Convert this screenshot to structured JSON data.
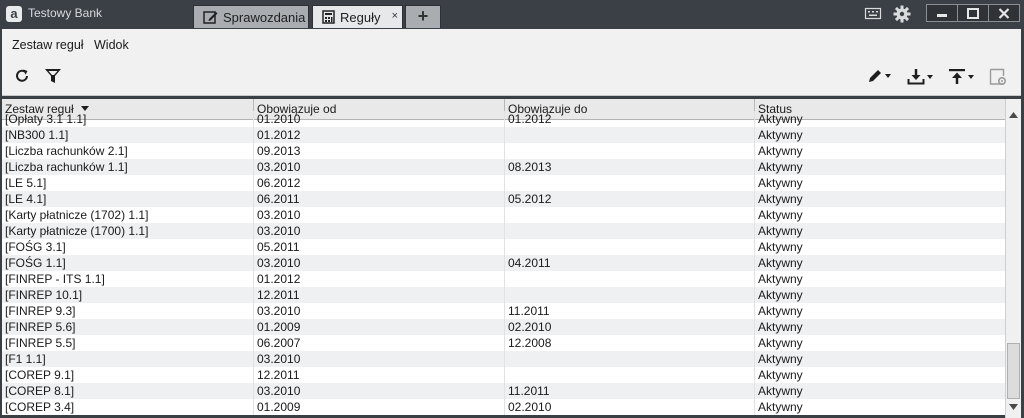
{
  "window": {
    "app_title": "Testowy Bank",
    "logo_letter": "a",
    "tabs": [
      {
        "label": "Sprawozdania",
        "icon": "edit-icon",
        "active": false
      },
      {
        "label": "Reguły",
        "icon": "calculator-icon",
        "active": true,
        "close": "×"
      },
      {
        "label": "+",
        "icon": "add-tab-icon",
        "active": false
      }
    ],
    "controls": [
      "keyboard-icon",
      "gear-icon",
      "minimize-icon",
      "maximize-icon",
      "close-icon"
    ]
  },
  "menu": {
    "items": [
      {
        "label": "Zestaw reguł"
      },
      {
        "label": "Widok"
      }
    ]
  },
  "toolbar": {
    "left": [
      "refresh-icon",
      "filter-icon"
    ],
    "right": [
      "edit-pencil-icon",
      "download-icon",
      "upload-icon",
      "settings-panel-icon"
    ]
  },
  "grid": {
    "columns": [
      "Zestaw reguł",
      "Obowiązuje od",
      "Obowiązuje do",
      "Status"
    ],
    "sorted_column": "Zestaw reguł",
    "rows": [
      [
        "[Opłaty 3.1 1.1]",
        "01.2010",
        "01.2012",
        "Aktywny"
      ],
      [
        "[NB300 1.1]",
        "01.2012",
        "",
        "Aktywny"
      ],
      [
        "[Liczba rachunków 2.1]",
        "09.2013",
        "",
        "Aktywny"
      ],
      [
        "[Liczba rachunków 1.1]",
        "03.2010",
        "08.2013",
        "Aktywny"
      ],
      [
        "[LE  5.1]",
        "06.2012",
        "",
        "Aktywny"
      ],
      [
        "[LE  4.1]",
        "06.2011",
        "05.2012",
        "Aktywny"
      ],
      [
        "[Karty płatnicze (1702) 1.1]",
        "03.2010",
        "",
        "Aktywny"
      ],
      [
        "[Karty płatnicze (1700) 1.1]",
        "03.2010",
        "",
        "Aktywny"
      ],
      [
        "[FOŚG 3.1]",
        "05.2011",
        "",
        "Aktywny"
      ],
      [
        "[FOŚG 1.1]",
        "03.2010",
        "04.2011",
        "Aktywny"
      ],
      [
        "[FINREP - ITS 1.1]",
        "01.2012",
        "",
        "Aktywny"
      ],
      [
        "[FINREP 10.1]",
        "12.2011",
        "",
        "Aktywny"
      ],
      [
        "[FINREP 9.3]",
        "03.2010",
        "11.2011",
        "Aktywny"
      ],
      [
        "[FINREP 5.6]",
        "01.2009",
        "02.2010",
        "Aktywny"
      ],
      [
        "[FINREP 5.5]",
        "06.2007",
        "12.2008",
        "Aktywny"
      ],
      [
        "[F1 1.1]",
        "03.2010",
        "",
        "Aktywny"
      ],
      [
        "[COREP 9.1]",
        "12.2011",
        "",
        "Aktywny"
      ],
      [
        "[COREP 8.1]",
        "03.2010",
        "11.2011",
        "Aktywny"
      ],
      [
        "[COREP 3.4]",
        "01.2009",
        "02.2010",
        "Aktywny"
      ]
    ]
  }
}
